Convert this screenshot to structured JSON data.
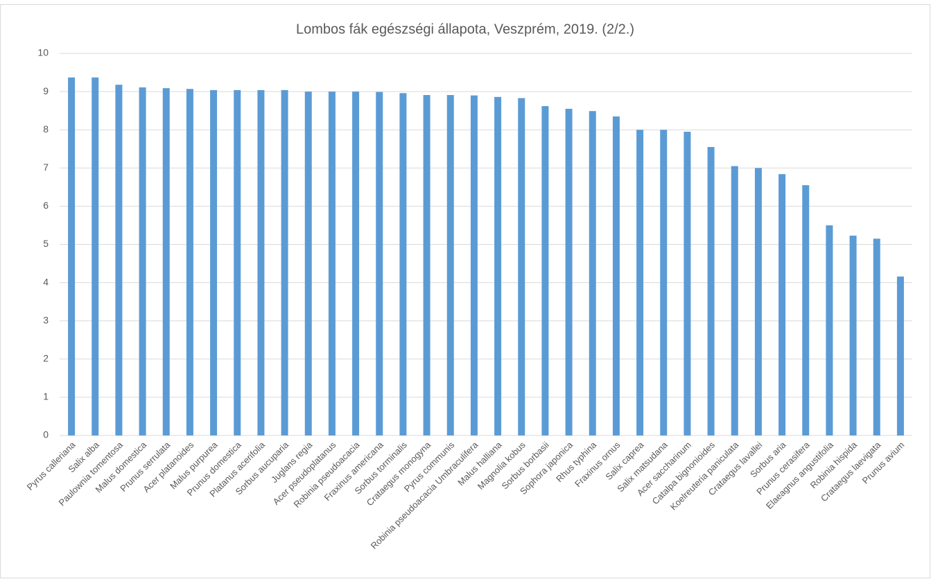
{
  "chart_data": {
    "type": "bar",
    "title": "Lombos fák egészségi állapota, Veszprém, 2019. (2/2.)",
    "categories": [
      "Pyrus calleriana",
      "Salix alba",
      "Paulownia tomentosa",
      "Malus domestica",
      "Prunus serrulata",
      "Acer platanoides",
      "Malus purpurea",
      "Prunus domestica",
      "Platanus acerifolia",
      "Sorbus aucuparia",
      "Juglans regia",
      "Acer pseudoplatanus",
      "Robinia pseudoacacia",
      "Fraxinus americana",
      "Sorbus torminalis",
      "Crataegus monogyna",
      "Pyrus communis",
      "Robinia pseudoacacia Umbraculifera",
      "Malus halliana",
      "Magnolia kobus",
      "Sorbus borbasii",
      "Sophora japonica",
      "Rhus typhina",
      "Fraxinus ornus",
      "Salix caprea",
      "Salix matsudana",
      "Acer saccharinum",
      "Catalpa bignonioides",
      "Koelreuteria paniculata",
      "Crataegus lavallei",
      "Sorbus aria",
      "Prunus cerasifera",
      "Elaeagnus angustifolia",
      "Robinia hispida",
      "Crataegus laevigata",
      "Prunus avium"
    ],
    "values": [
      9.37,
      9.37,
      9.18,
      9.11,
      9.09,
      9.07,
      9.04,
      9.04,
      9.04,
      9.04,
      9.0,
      9.0,
      9.0,
      8.99,
      8.96,
      8.91,
      8.91,
      8.9,
      8.86,
      8.83,
      8.62,
      8.55,
      8.49,
      8.35,
      8.0,
      8.0,
      7.95,
      7.55,
      7.05,
      7.0,
      6.84,
      6.55,
      5.5,
      5.23,
      5.15,
      4.16
    ],
    "color": "#5b9bd5",
    "ylim": [
      0,
      10
    ],
    "yticks": [
      0,
      1,
      2,
      3,
      4,
      5,
      6,
      7,
      8,
      9,
      10
    ],
    "grid": true
  }
}
